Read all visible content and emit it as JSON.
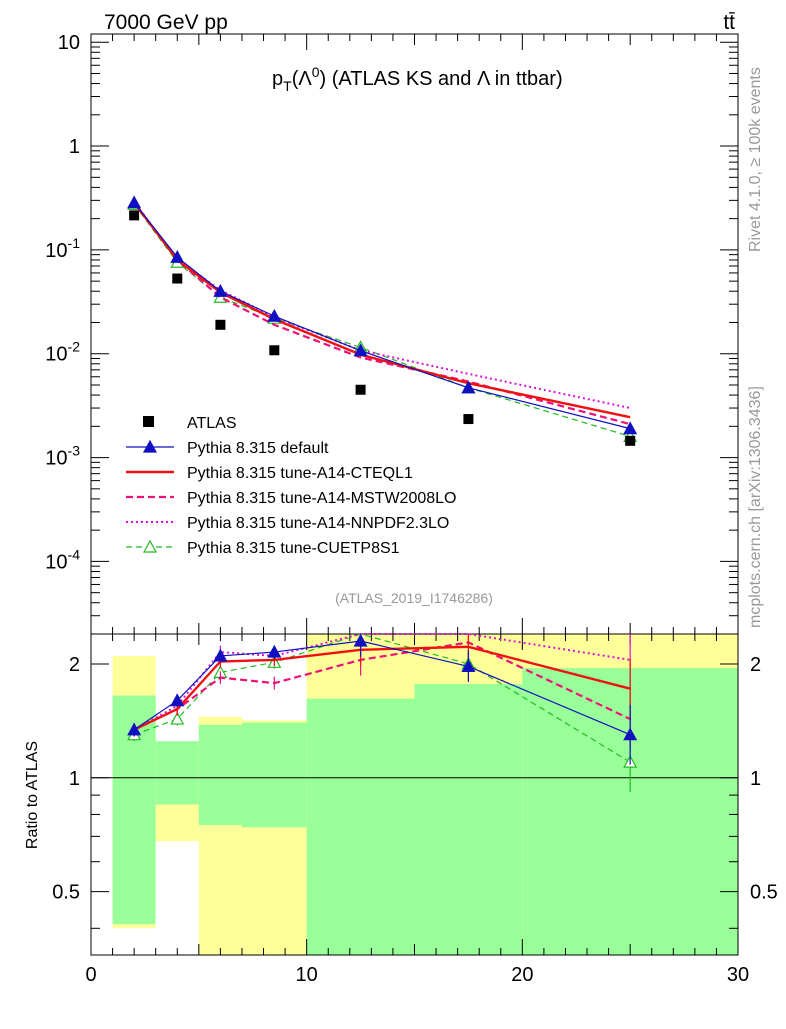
{
  "header": {
    "left_label": "7000 GeV pp",
    "right_label": "tt̄",
    "side_label_top": "Rivet 4.1.0, ≥ 100k events",
    "side_label_bottom": "mcplots.cern.ch [arXiv:1306.3436]",
    "analysis_id": "(ATLAS_2019_I1746286)"
  },
  "colors": {
    "data": "#000000",
    "default": "#1010c0",
    "cteql1": "#ee1111",
    "mstw": "#ee1177",
    "nnpdf": "#dd11dd",
    "cuetp8s1": "#22bb22",
    "band_yellow": "#ffff99",
    "band_green": "#99ff99"
  },
  "chart_data": [
    {
      "type": "line",
      "title_main": "p",
      "title_sub": "T",
      "title_paren": "(Λ",
      "title_sup": "0",
      "title_rest": ") (ATLAS KS and Λ in ttbar)",
      "yscale": "log",
      "xlim": [
        0,
        30
      ],
      "ylim": [
        2e-05,
        12
      ],
      "x_ticks": [
        "0",
        "10",
        "20",
        "30"
      ],
      "y_ticks": [
        {
          "base": "10",
          "exp": "-4"
        },
        {
          "base": "10",
          "exp": "-3"
        },
        {
          "base": "10",
          "exp": "-2"
        },
        {
          "base": "10",
          "exp": "-1"
        },
        {
          "base": "1",
          "exp": ""
        },
        {
          "base": "10",
          "exp": ""
        }
      ],
      "legend_position": "bottom-left",
      "x": [
        2,
        4,
        6,
        8.5,
        12.5,
        17.5,
        25
      ],
      "x_edges": [
        1,
        3,
        5,
        7,
        10,
        15,
        20,
        30
      ],
      "series": [
        {
          "key": "data",
          "name": "ATLAS",
          "style": "data",
          "values": [
            0.215,
            0.053,
            0.019,
            0.0108,
            0.0045,
            0.00235,
            0.00145
          ]
        },
        {
          "key": "default",
          "name": "Pythia 8.315 default",
          "style": "solid-triangle",
          "values": [
            0.285,
            0.085,
            0.04,
            0.023,
            0.0107,
            0.0047,
            0.0019
          ]
        },
        {
          "key": "cteql1",
          "name": "Pythia 8.315 tune-A14-CTEQL1",
          "style": "thick-solid",
          "values": [
            0.285,
            0.08,
            0.039,
            0.0215,
            0.0098,
            0.0052,
            0.00245
          ]
        },
        {
          "key": "mstw",
          "name": "Pythia 8.315 tune-A14-MSTW2008LO",
          "style": "dashed",
          "values": [
            0.285,
            0.08,
            0.035,
            0.019,
            0.0092,
            0.0054,
            0.0021
          ]
        },
        {
          "key": "nnpdf",
          "name": "Pythia 8.315 tune-A14-NNPDF2.3LO",
          "style": "dotted",
          "values": [
            0.29,
            0.081,
            0.041,
            0.0225,
            0.0108,
            0.0064,
            0.003
          ]
        },
        {
          "key": "cuetp8s1",
          "name": "Pythia 8.315 tune-CUETP8S1",
          "style": "dashed-open-triangle",
          "values": [
            0.275,
            0.076,
            0.035,
            0.022,
            0.0115,
            0.0047,
            0.0016
          ]
        }
      ]
    },
    {
      "type": "line",
      "ylabel": "Ratio to ATLAS",
      "yscale": "log",
      "xlim": [
        0,
        30
      ],
      "ylim": [
        0.34,
        2.4
      ],
      "y_ticks": [
        "0.5",
        "1",
        "2"
      ],
      "x": [
        2,
        4,
        6,
        8.5,
        12.5,
        17.5,
        25
      ],
      "bands": {
        "x_edges": [
          1,
          3,
          5,
          7,
          10,
          15,
          20,
          30
        ],
        "yellow": [
          [
            0.4,
            2.1
          ],
          [
            0.68,
            1.23
          ],
          [
            0.34,
            1.45
          ],
          [
            0.34,
            1.42
          ],
          [
            0.44,
            2.4
          ],
          [
            0.34,
            2.4
          ],
          [
            0.34,
            2.4
          ]
        ],
        "green": [
          [
            0.41,
            1.65
          ],
          [
            0.85,
            1.25
          ],
          [
            0.75,
            1.38
          ],
          [
            0.74,
            1.4
          ],
          [
            0.34,
            1.62
          ],
          [
            0.34,
            1.77
          ],
          [
            0.34,
            1.95
          ]
        ],
        "white_fill": [
          [
            0.34,
            0.4
          ],
          [
            0.34,
            0.68
          ],
          null,
          [
            1.42,
            1.55
          ],
          null,
          null,
          null
        ]
      },
      "series": [
        {
          "key": "default",
          "values": [
            1.34,
            1.6,
            2.1,
            2.15,
            2.3,
            1.97,
            1.3
          ]
        },
        {
          "key": "cteql1",
          "values": [
            1.34,
            1.52,
            2.03,
            2.05,
            2.18,
            2.22,
            1.72
          ]
        },
        {
          "key": "mstw",
          "values": [
            1.34,
            1.52,
            1.84,
            1.78,
            2.05,
            2.28,
            1.43
          ]
        },
        {
          "key": "nnpdf",
          "values": [
            1.34,
            1.55,
            2.15,
            2.1,
            2.42,
            2.5,
            2.05
          ]
        },
        {
          "key": "cuetp8s1",
          "values": [
            1.3,
            1.43,
            1.9,
            2.02,
            2.45,
            2.0,
            1.1
          ]
        }
      ]
    }
  ]
}
